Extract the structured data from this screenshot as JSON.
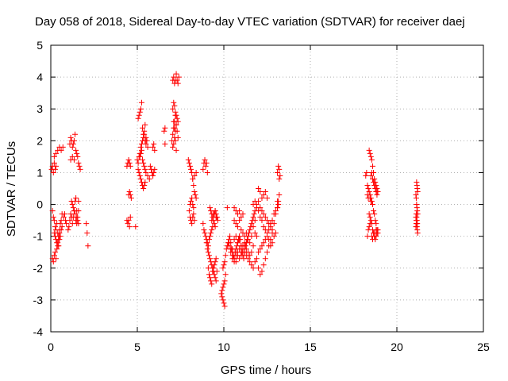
{
  "chart_data": {
    "type": "scatter",
    "title": "Day 058 of 2018, Sidereal Day-to-day VTEC variation (SDTVAR) for receiver daej",
    "xlabel": "GPS time / hours",
    "ylabel": "SDTVAR / TECUs",
    "xlim": [
      0,
      25
    ],
    "ylim": [
      -4,
      5
    ],
    "xticks": [
      "0",
      "5",
      "10",
      "15",
      "20",
      "25"
    ],
    "yticks": [
      "-4",
      "-3",
      "-2",
      "-1",
      "0",
      "1",
      "2",
      "3",
      "4",
      "5"
    ],
    "grid": true,
    "marker": "+",
    "color": "#ff0000",
    "series": [
      {
        "name": "SDTVAR",
        "x": [
          0.05,
          0.1,
          0.15,
          0.2,
          0.25,
          0.3,
          0.1,
          0.15,
          0.2,
          0.25,
          0.3,
          0.35,
          0.4,
          0.45,
          0.5,
          0.55,
          0.6,
          0.65,
          0.1,
          0.15,
          0.2,
          0.25,
          0.3,
          0.35,
          0.4,
          0.45,
          0.5,
          0.2,
          0.25,
          0.3,
          0.35,
          0.4,
          0.45,
          0.5,
          0.55,
          0.6,
          0.65,
          0.2,
          0.3,
          0.4,
          0.5,
          0.6,
          0.7,
          0.75,
          0.8,
          0.85,
          0.9,
          1.0,
          1.05,
          1.1,
          1.15,
          1.2,
          1.25,
          1.3,
          1.35,
          1.4,
          1.45,
          1.5,
          1.55,
          1.6,
          1.1,
          1.15,
          1.2,
          1.25,
          1.3,
          1.35,
          1.4,
          1.45,
          1.5,
          1.55,
          1.6,
          1.65,
          1.7,
          1.2,
          1.25,
          1.3,
          1.35,
          1.4,
          1.45,
          1.5,
          1.55,
          1.6,
          1.15,
          1.25,
          1.35,
          1.5,
          1.6,
          2.05,
          2.1,
          2.15,
          4.4,
          4.45,
          4.5,
          4.55,
          4.6,
          4.5,
          4.55,
          4.6,
          4.65,
          4.4,
          4.45,
          4.5,
          4.55,
          4.6,
          4.9,
          5.0,
          5.05,
          5.1,
          5.15,
          5.2,
          5.25,
          5.3,
          5.35,
          5.4,
          5.45,
          5.5,
          5.05,
          5.1,
          5.15,
          5.2,
          5.25,
          5.3,
          5.35,
          5.4,
          5.45,
          5.5,
          5.55,
          5.6,
          5.05,
          5.1,
          5.15,
          5.2,
          5.25,
          5.3,
          5.35,
          5.4,
          5.45,
          5.15,
          5.2,
          5.25,
          5.3,
          5.35,
          5.4,
          5.45,
          5.5,
          5.6,
          5.7,
          5.75,
          5.8,
          5.85,
          5.9,
          5.95,
          6.0,
          5.9,
          5.95,
          6.0,
          6.55,
          6.6,
          6.6,
          7.0,
          7.05,
          7.1,
          7.15,
          7.2,
          7.25,
          7.3,
          7.35,
          7.05,
          7.1,
          7.15,
          7.2,
          7.25,
          7.3,
          7.35,
          7.4,
          7.05,
          7.1,
          7.15,
          7.2,
          7.25,
          7.3,
          7.35,
          7.05,
          7.1,
          7.15,
          7.2,
          7.25,
          7.1,
          7.15,
          7.2,
          7.25,
          7.95,
          8.0,
          8.05,
          8.1,
          8.15,
          8.2,
          8.25,
          8.3,
          8.35,
          8.4,
          8.0,
          8.05,
          8.1,
          8.15,
          8.2,
          8.25,
          8.3,
          8.05,
          8.1,
          8.15,
          8.2,
          8.25,
          8.2,
          8.3,
          8.4,
          8.8,
          8.85,
          8.9,
          8.95,
          9.0,
          9.05,
          8.8,
          8.85,
          8.9,
          8.95,
          9.0,
          9.05,
          9.1,
          9.15,
          9.2,
          9.25,
          9.3,
          9.35,
          9.0,
          9.05,
          9.1,
          9.15,
          9.2,
          9.25,
          9.3,
          9.35,
          9.4,
          9.45,
          9.5,
          9.55,
          9.6,
          9.1,
          9.15,
          9.2,
          9.25,
          9.3,
          9.35,
          9.4,
          9.45,
          9.5,
          9.55,
          9.2,
          9.25,
          9.3,
          9.35,
          9.4,
          9.45,
          9.5,
          9.55,
          9.3,
          9.4,
          9.5,
          9.6,
          9.45,
          9.5,
          9.55,
          9.6,
          9.65,
          9.9,
          9.95,
          10.0,
          10.05,
          9.85,
          9.9,
          9.95,
          10.0,
          10.05,
          10.1,
          9.95,
          10.0,
          10.05,
          10.1,
          10.15,
          10.2,
          10.25,
          10.3,
          10.35,
          10.4,
          10.45,
          10.5,
          10.55,
          10.6,
          10.65,
          10.7,
          10.75,
          10.8,
          10.85,
          10.9,
          10.95,
          11.0,
          11.05,
          11.1,
          11.15,
          11.2,
          11.25,
          11.3,
          11.35,
          11.4,
          11.45,
          11.5,
          11.55,
          11.6,
          11.65,
          11.7,
          11.75,
          11.8,
          10.2,
          10.3,
          10.4,
          10.5,
          10.6,
          10.7,
          10.8,
          10.9,
          11.0,
          11.1,
          11.2,
          11.3,
          11.4,
          11.5,
          11.6,
          10.5,
          10.6,
          10.7,
          10.8,
          10.9,
          11.0,
          11.1,
          10.6,
          10.7,
          10.8,
          10.9,
          11.0,
          11.1,
          11.2,
          11.3,
          11.4,
          11.5,
          11.6,
          11.7,
          10.3,
          10.4,
          10.5,
          10.6,
          10.7,
          10.8,
          10.9,
          11.0,
          11.1,
          11.2,
          11.3,
          10.6,
          10.7,
          10.8,
          10.9,
          11.0,
          11.1,
          11.2,
          11.3,
          11.4,
          11.5,
          11.6,
          11.7,
          11.8,
          11.9,
          12.0,
          12.1,
          12.2,
          12.3,
          12.4,
          12.5,
          12.6,
          12.7,
          12.8,
          12.9,
          13.0,
          13.1,
          11.7,
          11.8,
          11.9,
          12.0,
          12.1,
          12.2,
          12.3,
          12.4,
          12.5,
          12.6,
          12.7,
          12.8,
          12.9,
          13.0,
          11.7,
          11.8,
          11.9,
          12.0,
          12.1,
          12.2,
          12.3,
          12.4,
          12.5,
          12.6,
          12.7,
          12.8,
          11.8,
          11.9,
          12.0,
          12.1,
          12.2,
          12.3,
          12.4,
          12.5,
          12.6,
          12.7,
          12.8,
          12.9,
          13.0,
          13.1,
          13.15,
          13.2,
          12.0,
          12.1,
          12.2,
          12.3,
          12.4,
          12.5,
          13.1,
          13.15,
          13.2,
          13.25,
          13.1,
          13.15,
          13.2,
          18.2,
          18.25,
          18.3,
          18.35,
          18.4,
          18.45,
          18.5,
          18.55,
          18.6,
          18.65,
          18.7,
          18.75,
          18.8,
          18.85,
          18.9,
          18.3,
          18.35,
          18.4,
          18.45,
          18.5,
          18.55,
          18.6,
          18.65,
          18.7,
          18.75,
          18.8,
          18.85,
          18.9,
          18.3,
          18.35,
          18.4,
          18.45,
          18.5,
          18.55,
          18.6,
          18.65,
          18.7,
          18.75,
          18.8,
          18.85,
          18.9,
          18.4,
          18.45,
          18.5,
          18.55,
          18.6,
          18.65,
          18.7,
          18.75,
          18.8,
          18.85,
          18.45,
          18.5,
          18.55,
          18.6,
          18.7,
          18.8,
          21.1,
          21.12,
          21.14,
          21.16,
          21.18,
          21.2,
          21.1,
          21.12,
          21.14,
          21.16,
          21.18,
          21.2,
          21.1,
          21.12,
          21.14,
          21.16,
          21.18,
          21.2,
          21.12,
          21.14,
          21.16,
          21.18
        ],
        "y": [
          1.1,
          1.2,
          1.0,
          1.3,
          1.1,
          1.2,
          -0.2,
          -0.4,
          -0.5,
          -0.7,
          -0.8,
          -0.6,
          -0.9,
          -1.0,
          -0.8,
          -0.6,
          -0.5,
          -0.3,
          -1.7,
          -1.8,
          -1.6,
          -1.5,
          -1.7,
          -1.4,
          -1.2,
          -1.3,
          -1.1,
          -0.9,
          -1.0,
          -1.1,
          -1.2,
          -1.3,
          -1.1,
          -0.9,
          -1.0,
          -0.8,
          -0.7,
          1.5,
          1.6,
          1.7,
          1.8,
          1.7,
          1.8,
          -0.4,
          -0.3,
          -0.5,
          -0.6,
          -0.8,
          -0.7,
          -0.5,
          -0.3,
          -0.4,
          -0.6,
          -0.4,
          -0.2,
          -0.3,
          -0.5,
          -0.6,
          -0.4,
          -0.2,
          1.9,
          2.1,
          2.0,
          1.8,
          1.9,
          2.0,
          2.2,
          1.7,
          1.6,
          1.5,
          1.3,
          1.2,
          1.1,
          0.1,
          0.0,
          -0.1,
          -0.2,
          0.1,
          0.2,
          -0.4,
          -0.5,
          -0.6,
          1.4,
          1.5,
          1.4,
          -0.2,
          0.1,
          -0.6,
          -0.9,
          -1.3,
          1.2,
          1.3,
          1.4,
          1.3,
          1.2,
          0.3,
          0.4,
          0.3,
          0.2,
          -0.5,
          -0.6,
          -0.5,
          -0.7,
          -0.4,
          -0.7,
          1.4,
          1.3,
          1.5,
          1.6,
          1.8,
          1.9,
          2.0,
          2.1,
          2.2,
          2.0,
          1.9,
          2.7,
          2.8,
          2.9,
          3.0,
          3.2,
          2.4,
          2.2,
          2.3,
          2.5,
          2.1,
          2.0,
          1.8,
          1.1,
          1.0,
          0.9,
          0.8,
          0.7,
          0.6,
          0.5,
          0.6,
          0.7,
          1.5,
          1.6,
          1.7,
          1.4,
          1.3,
          1.2,
          1.1,
          1.0,
          0.9,
          0.8,
          1.2,
          1.1,
          1.0,
          0.9,
          1.0,
          1.1,
          1.8,
          1.9,
          1.7,
          2.3,
          2.4,
          1.9,
          2.0,
          2.2,
          2.4,
          2.6,
          2.8,
          2.5,
          2.3,
          2.1,
          3.9,
          4.0,
          3.8,
          3.9,
          4.1,
          3.9,
          3.8,
          4.0,
          3.0,
          3.2,
          3.1,
          2.9,
          2.8,
          2.7,
          2.6,
          1.8,
          1.9,
          2.1,
          2.0,
          1.7,
          2.6,
          2.4,
          2.3,
          2.5,
          1.4,
          1.3,
          1.2,
          1.1,
          1.0,
          0.8,
          0.6,
          0.4,
          0.3,
          0.2,
          -0.2,
          -0.4,
          -0.5,
          -0.6,
          -0.4,
          -0.3,
          -0.5,
          0.0,
          0.1,
          0.2,
          0.0,
          -0.1,
          0.8,
          0.9,
          1.0,
          1.1,
          1.3,
          1.4,
          1.2,
          1.3,
          1.0,
          -0.6,
          -0.8,
          -0.9,
          -1.0,
          -1.1,
          -1.2,
          -1.3,
          -1.1,
          -1.0,
          -0.9,
          -0.8,
          -0.7,
          -1.2,
          -1.4,
          -1.5,
          -1.6,
          -1.7,
          -1.8,
          -1.9,
          -2.0,
          -2.1,
          -2.2,
          -2.3,
          -2.4,
          -2.1,
          -2.0,
          -2.2,
          -2.3,
          -2.4,
          -2.5,
          -2.1,
          -2.0,
          -1.9,
          -1.8,
          -1.7,
          -0.1,
          -0.2,
          -0.3,
          -0.4,
          -0.5,
          -0.6,
          -0.7,
          -0.4,
          -0.5,
          -0.3,
          -0.2,
          -0.4,
          -0.3,
          -0.2,
          -0.3,
          -0.4,
          -0.5,
          -2.9,
          -3.0,
          -3.1,
          -3.2,
          -2.8,
          -2.7,
          -2.6,
          -2.5,
          -2.4,
          -2.2,
          -2.0,
          -1.9,
          -1.8,
          -1.6,
          -1.4,
          -1.3,
          -1.2,
          -1.1,
          -1.0,
          -1.2,
          -1.4,
          -1.5,
          -1.6,
          -1.7,
          -1.5,
          -1.4,
          -1.3,
          -1.2,
          -1.1,
          -1.0,
          -1.1,
          -1.3,
          -1.5,
          -1.6,
          -1.7,
          -1.5,
          -1.3,
          -1.2,
          -1.1,
          -1.0,
          -0.9,
          -0.8,
          -0.7,
          -0.6,
          -0.5,
          -0.4,
          -0.3,
          -0.2,
          -0.1,
          -1.3,
          -1.4,
          -1.6,
          -1.7,
          -1.8,
          -1.6,
          -1.4,
          -1.5,
          -1.3,
          -1.2,
          -1.4,
          -1.5,
          -1.6,
          -1.5,
          -1.4,
          -0.1,
          -0.2,
          -0.3,
          -0.2,
          -0.4,
          -0.3,
          -0.5,
          -0.6,
          -0.7,
          -0.5,
          -0.8,
          -0.9,
          -1.0,
          -0.9,
          -1.1,
          -1.2,
          -1.0,
          -1.3,
          -1.2,
          -1.5,
          -1.7,
          -1.8,
          -1.6,
          -1.5,
          -1.7,
          -1.6,
          -1.4,
          -1.3,
          -1.2,
          -1.1,
          -1.0,
          -1.2,
          -1.1,
          -1.3,
          -1.4,
          -1.5,
          -1.6,
          -1.7,
          -1.8,
          -1.9,
          -2.0,
          -1.8,
          -1.7,
          -1.5,
          -1.4,
          -1.3,
          -1.2,
          -1.1,
          -0.9,
          -0.8,
          -0.6,
          -0.5,
          -0.3,
          -0.2,
          -0.1,
          0.0,
          0.1,
          -0.1,
          -0.2,
          -0.4,
          -0.5,
          -0.7,
          -0.8,
          -1.0,
          -1.1,
          -1.3,
          -1.2,
          -1.0,
          -0.9,
          -0.7,
          -0.5,
          0.0,
          0.1,
          -0.1,
          -0.2,
          -0.3,
          -0.4,
          -0.5,
          -0.6,
          -0.7,
          -0.8,
          -0.9,
          -1.0,
          -2.0,
          -2.2,
          -2.1,
          -1.9,
          -1.7,
          -1.5,
          -1.3,
          -1.1,
          -0.9,
          -0.6,
          -0.3,
          -0.1,
          0.1,
          0.3,
          0.5,
          0.4,
          0.2,
          0.3,
          0.4,
          0.2,
          0.1,
          0.0,
          0.8,
          0.9,
          1.0,
          1.2,
          1.1,
          0.9,
          1.0,
          0.6,
          0.5,
          0.4,
          0.3,
          0.2,
          0.1,
          0.0,
          -0.2,
          -0.3,
          -0.5,
          -0.6,
          -0.8,
          -0.9,
          -1.0,
          -0.8,
          1.7,
          1.6,
          1.5,
          1.4,
          1.2,
          1.0,
          0.8,
          0.7,
          0.6,
          0.5,
          0.4,
          0.3,
          0.2,
          -0.3,
          -0.4,
          -0.5,
          -0.6,
          -0.8,
          -0.9,
          -1.0,
          -1.1,
          -1.0,
          -0.9,
          -0.8,
          -0.7,
          -0.6,
          0.9,
          1.0,
          0.8,
          0.7,
          0.6,
          0.5,
          0.4,
          0.3,
          0.2,
          0.1,
          -1.0,
          -1.1,
          -0.9,
          -0.8,
          -0.7,
          -0.6,
          0.7,
          0.6,
          0.5,
          0.4,
          0.3,
          0.2,
          0.0,
          -0.1,
          -0.2,
          -0.3,
          -0.4,
          -0.5,
          -0.6,
          -0.7,
          -0.8,
          -0.9,
          -0.3,
          -0.4,
          -0.5,
          -0.6
        ]
      }
    ]
  }
}
